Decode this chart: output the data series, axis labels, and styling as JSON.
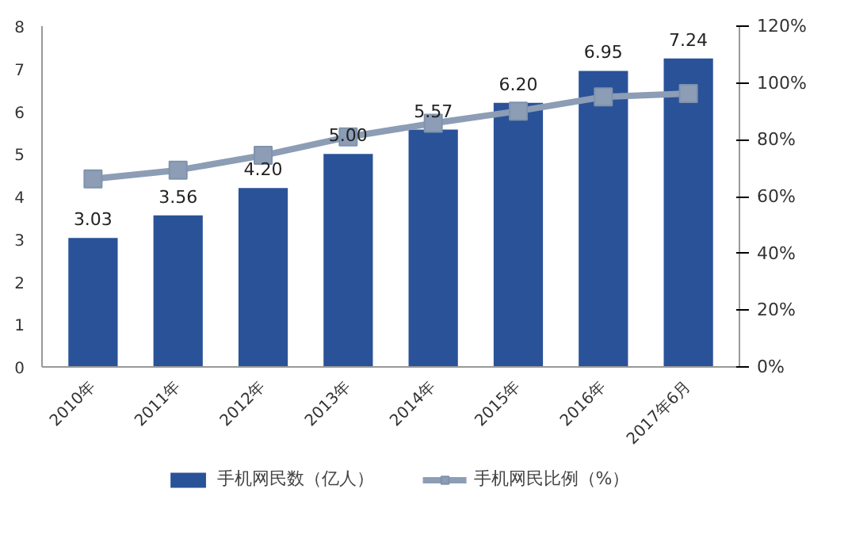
{
  "chart_data": {
    "type": "bar",
    "categories": [
      "2010年",
      "2011年",
      "2012年",
      "2013年",
      "2014年",
      "2015年",
      "2016年",
      "2017年6月"
    ],
    "series": [
      {
        "name": "手机网民数（亿人）",
        "color": "#2a5298",
        "values": [
          3.03,
          3.56,
          4.2,
          5.0,
          5.57,
          6.2,
          6.95,
          7.24
        ],
        "value_labels": [
          "3.03",
          "3.56",
          "4.20",
          "5.00",
          "5.57",
          "6.20",
          "6.95",
          "7.24"
        ]
      },
      {
        "name": "手机网民比例（%）",
        "type": "line",
        "axis": "y2",
        "color": "#8c9db5",
        "marker": "square",
        "values": [
          66.2,
          69.3,
          74.5,
          81.0,
          85.8,
          90.1,
          95.1,
          96.3
        ]
      }
    ],
    "ylim": [
      0,
      8
    ],
    "yticks": [
      0,
      1,
      2,
      3,
      4,
      5,
      6,
      7,
      8
    ],
    "y2lim": [
      0,
      120
    ],
    "y2ticks": [
      {
        "value": 0,
        "label": "0%"
      },
      {
        "value": 20,
        "label": "20%"
      },
      {
        "value": 40,
        "label": "40%"
      },
      {
        "value": 60,
        "label": "60%"
      },
      {
        "value": 80,
        "label": "80%"
      },
      {
        "value": 100,
        "label": "100%"
      },
      {
        "value": 120,
        "label": "120%"
      }
    ],
    "grid": false,
    "legend": "bottom"
  }
}
